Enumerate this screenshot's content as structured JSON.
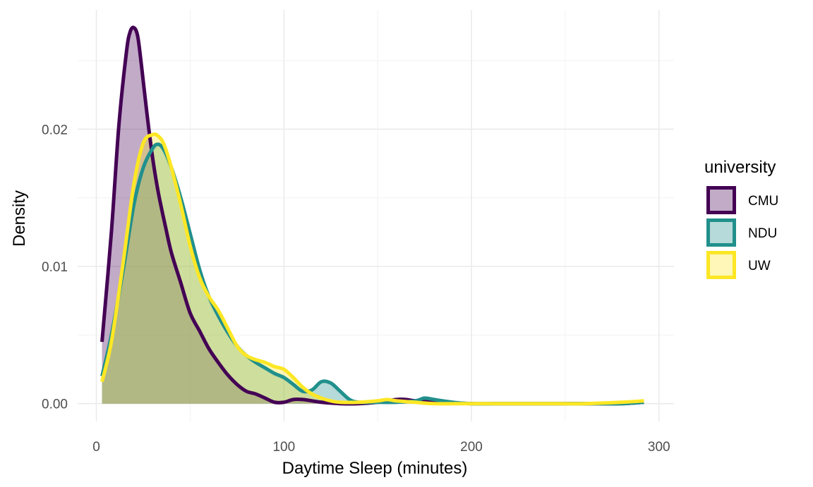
{
  "chart_data": {
    "type": "area",
    "kind": "density",
    "xlabel": "Daytime Sleep (minutes)",
    "ylabel": "Density",
    "xlim": [
      -10,
      308
    ],
    "ylim": [
      -0.0013,
      0.0287
    ],
    "x_ticks": [
      0,
      100,
      200,
      300
    ],
    "y_ticks": [
      0.0,
      0.01,
      0.02
    ],
    "x_tick_labels": [
      "0",
      "100",
      "200",
      "300"
    ],
    "y_tick_labels": [
      "0.00",
      "0.01",
      "0.02"
    ],
    "grid": true,
    "legend": {
      "title": "university",
      "position": "right"
    },
    "series": [
      {
        "name": "CMU",
        "color": "#440154",
        "fill_opacity": 0.33,
        "x": [
          3,
          8,
          12,
          16,
          18,
          20,
          22,
          24,
          27,
          30,
          33,
          37,
          40,
          45,
          50,
          55,
          60,
          65,
          70,
          75,
          80,
          85,
          90,
          95,
          100,
          105,
          110,
          115,
          120,
          130,
          140,
          150,
          160,
          165,
          170,
          180,
          200,
          220,
          240,
          260,
          280,
          292
        ],
        "y": [
          0.0045,
          0.0125,
          0.0203,
          0.0256,
          0.0271,
          0.0274,
          0.0268,
          0.0247,
          0.0211,
          0.0179,
          0.0154,
          0.0128,
          0.011,
          0.0088,
          0.0066,
          0.0053,
          0.004,
          0.003,
          0.0021,
          0.0014,
          0.0009,
          0.0007,
          0.0004,
          0.0001,
          0.0001,
          0.0003,
          0.0003,
          0.0002,
          0.0001,
          0.0,
          0.0,
          0.0001,
          0.0003,
          0.0003,
          0.0002,
          0.0001,
          0.0,
          0.0,
          0.0,
          0.0,
          0.0,
          0.0001
        ]
      },
      {
        "name": "NDU",
        "color": "#21908C",
        "fill_opacity": 0.33,
        "x": [
          3,
          8,
          14,
          20,
          25,
          30,
          33,
          36,
          40,
          45,
          50,
          55,
          60,
          65,
          70,
          75,
          80,
          85,
          90,
          95,
          100,
          105,
          110,
          115,
          120,
          125,
          130,
          135,
          140,
          150,
          160,
          170,
          175,
          180,
          190,
          200,
          220,
          240,
          260,
          280,
          292
        ],
        "y": [
          0.002,
          0.005,
          0.0095,
          0.0145,
          0.0172,
          0.0186,
          0.0189,
          0.0185,
          0.0172,
          0.015,
          0.0124,
          0.0098,
          0.0078,
          0.0064,
          0.0052,
          0.0042,
          0.0035,
          0.003,
          0.0026,
          0.0022,
          0.0019,
          0.0014,
          0.0009,
          0.001,
          0.0016,
          0.0015,
          0.0009,
          0.0003,
          0.0001,
          0.0001,
          0.0001,
          0.0002,
          0.0004,
          0.0003,
          0.0001,
          0.0,
          0.0,
          0.0,
          0.0,
          0.0,
          0.0001
        ]
      },
      {
        "name": "UW",
        "color": "#FDE725",
        "fill_opacity": 0.33,
        "x": [
          3,
          8,
          14,
          20,
          25,
          30,
          33,
          36,
          40,
          45,
          50,
          55,
          60,
          65,
          70,
          75,
          80,
          85,
          90,
          95,
          100,
          105,
          110,
          115,
          120,
          125,
          130,
          140,
          150,
          155,
          160,
          170,
          180,
          200,
          220,
          240,
          260,
          280,
          292
        ],
        "y": [
          0.0016,
          0.0045,
          0.01,
          0.016,
          0.019,
          0.0196,
          0.0195,
          0.0189,
          0.0172,
          0.0145,
          0.0115,
          0.0092,
          0.0078,
          0.0068,
          0.0055,
          0.0042,
          0.0035,
          0.0032,
          0.003,
          0.0027,
          0.0025,
          0.0019,
          0.0012,
          0.0007,
          0.0004,
          0.0002,
          0.0001,
          0.0001,
          0.0002,
          0.0003,
          0.0002,
          0.0001,
          0.0,
          0.0,
          0.0,
          0.0,
          0.0,
          0.0001,
          0.0002
        ]
      }
    ]
  }
}
